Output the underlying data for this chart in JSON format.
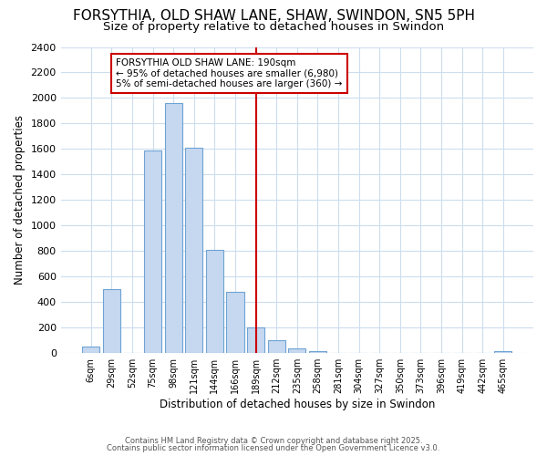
{
  "title_line1": "FORSYTHIA, OLD SHAW LANE, SHAW, SWINDON, SN5 5PH",
  "title_line2": "Size of property relative to detached houses in Swindon",
  "xlabel": "Distribution of detached houses by size in Swindon",
  "ylabel": "Number of detached properties",
  "bar_labels": [
    "6sqm",
    "29sqm",
    "52sqm",
    "75sqm",
    "98sqm",
    "121sqm",
    "144sqm",
    "166sqm",
    "189sqm",
    "212sqm",
    "235sqm",
    "258sqm",
    "281sqm",
    "304sqm",
    "327sqm",
    "350sqm",
    "373sqm",
    "396sqm",
    "419sqm",
    "442sqm",
    "465sqm"
  ],
  "bar_values": [
    50,
    505,
    0,
    1590,
    1960,
    1610,
    810,
    480,
    200,
    100,
    38,
    18,
    0,
    0,
    0,
    0,
    0,
    0,
    0,
    0,
    15
  ],
  "bar_color": "#c5d8f0",
  "bar_edge_color": "#6ea3d4",
  "vline_x": 8.0,
  "vline_color": "#cc0000",
  "annotation_title": "FORSYTHIA OLD SHAW LANE: 190sqm",
  "annotation_line1": "← 95% of detached houses are smaller (6,980)",
  "annotation_line2": "5% of semi-detached houses are larger (360) →",
  "annotation_box_color": "#cc0000",
  "ylim": [
    0,
    2400
  ],
  "yticks": [
    0,
    200,
    400,
    600,
    800,
    1000,
    1200,
    1400,
    1600,
    1800,
    2000,
    2200,
    2400
  ],
  "background_color": "#ffffff",
  "grid_color": "#ccddee",
  "footer_line1": "Contains HM Land Registry data © Crown copyright and database right 2025.",
  "footer_line2": "Contains public sector information licensed under the Open Government Licence v3.0.",
  "title_fontsize": 11,
  "subtitle_fontsize": 9.5
}
